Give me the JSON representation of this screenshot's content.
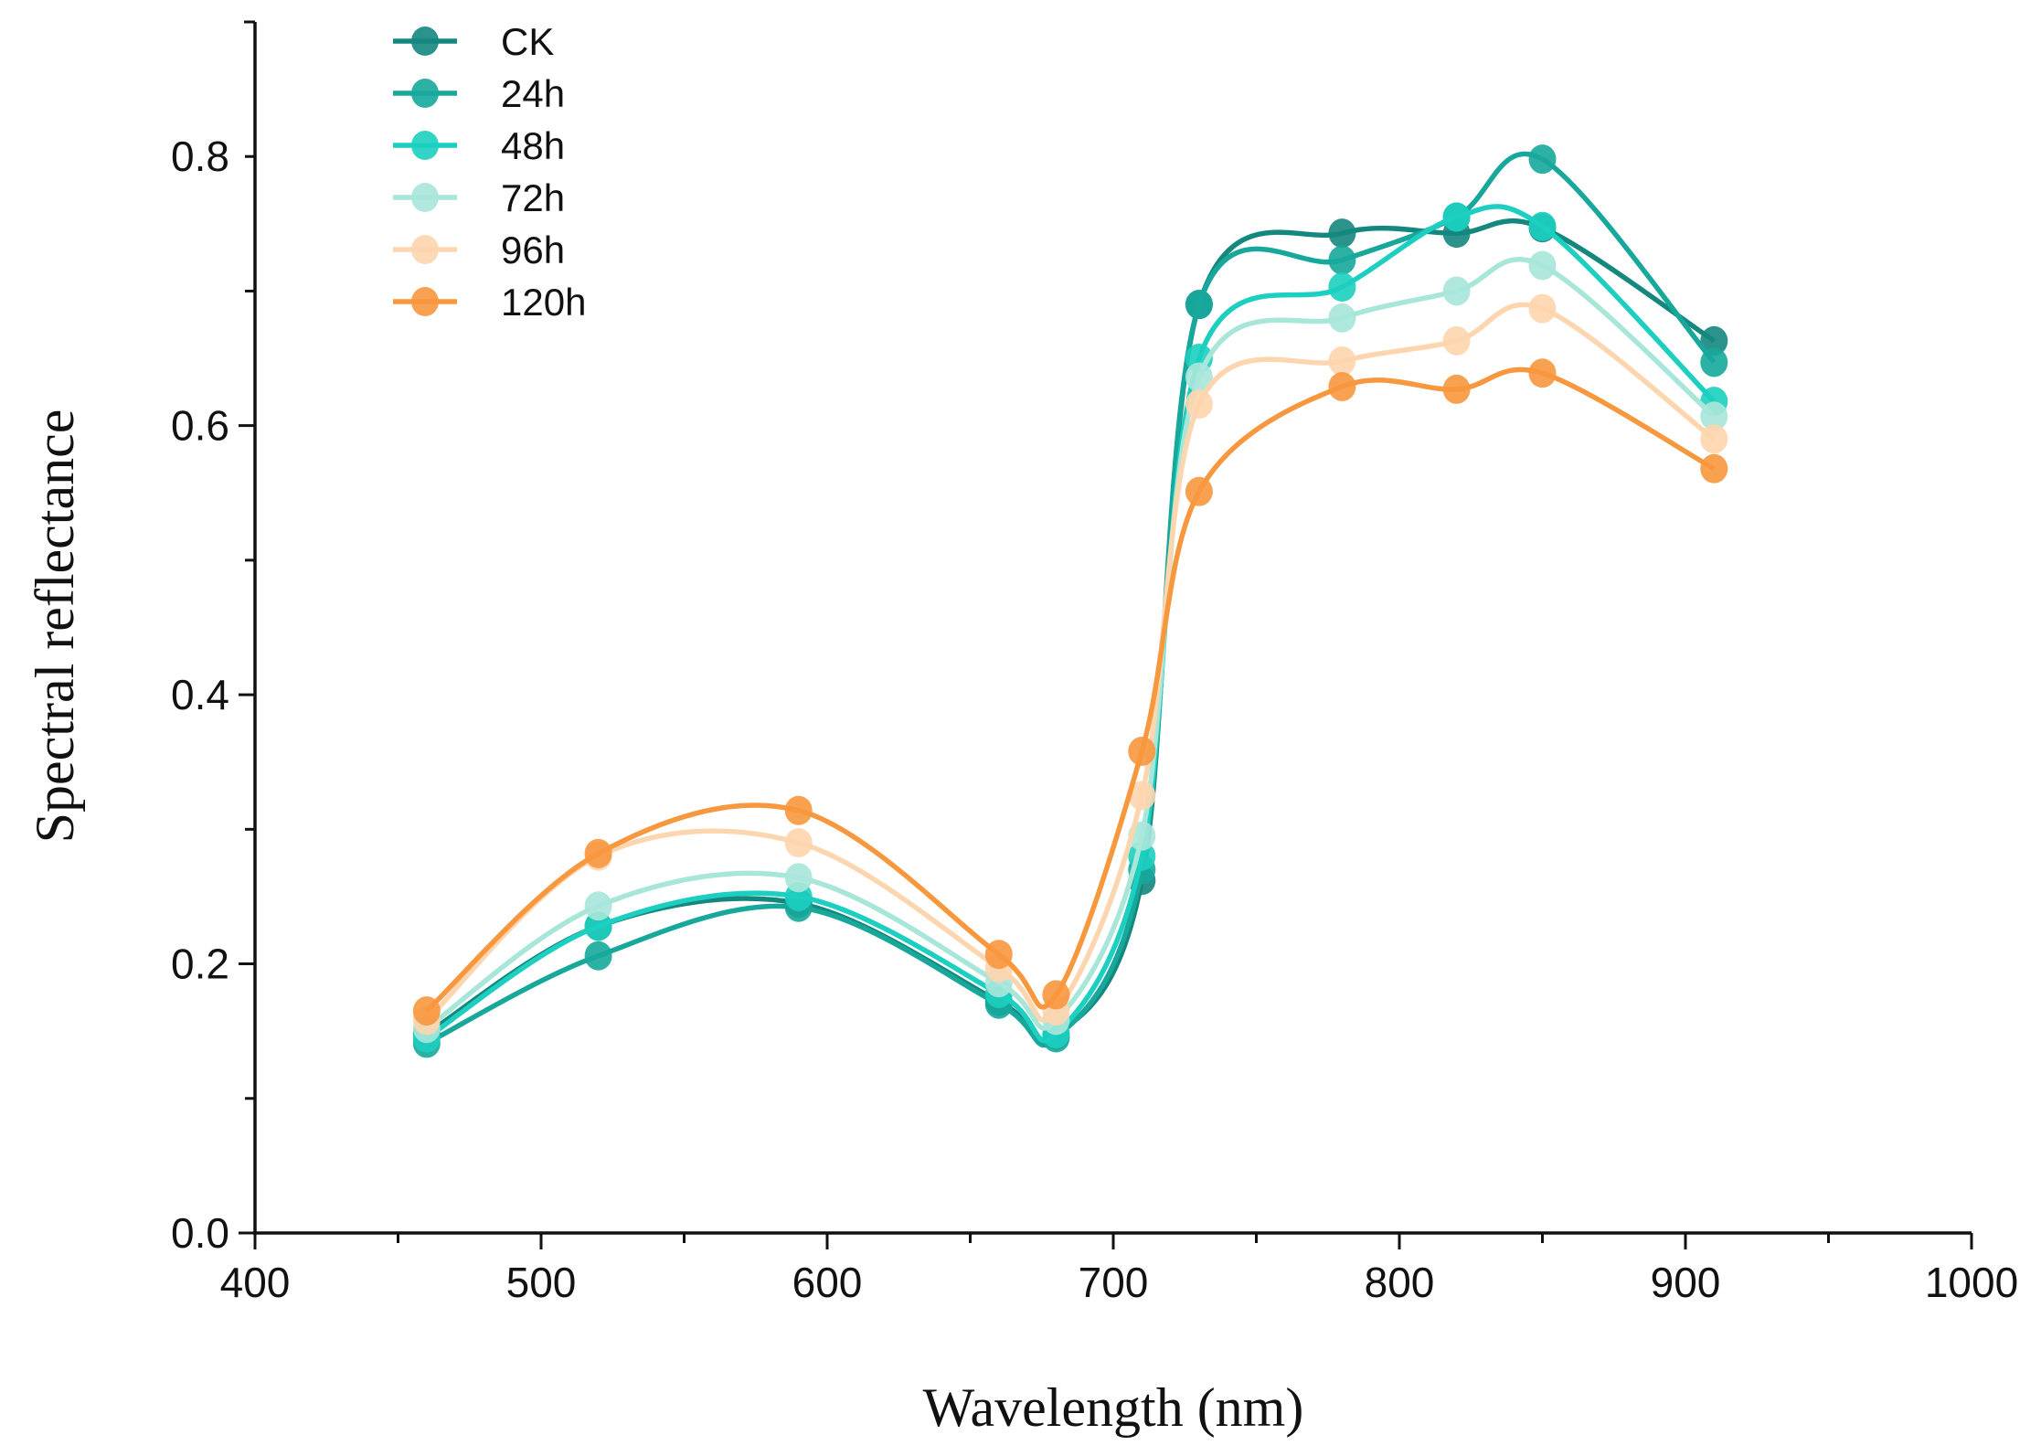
{
  "chart_data": {
    "type": "line",
    "title": "",
    "xlabel": "Wavelength (nm)",
    "ylabel": "Spectral reflectance",
    "xlim": [
      400,
      1000
    ],
    "ylim": [
      0,
      0.9
    ],
    "xticks": [
      400,
      500,
      600,
      700,
      800,
      900,
      1000
    ],
    "xtick_labels": [
      "400",
      "500",
      "600",
      "700",
      "800",
      "900",
      "1000"
    ],
    "yticks": [
      0,
      0.2,
      0.4,
      0.6,
      0.8
    ],
    "ytick_labels": [
      "0.0",
      "0.2",
      "0.4",
      "0.6",
      "0.8"
    ],
    "grid": false,
    "legend_position": "top-left",
    "x": [
      460,
      520,
      590,
      660,
      680,
      710,
      730,
      780,
      820,
      850,
      910
    ],
    "series": [
      {
        "name": "CK",
        "color": "#14877e",
        "values": [
          0.148,
          0.228,
          0.245,
          0.172,
          0.147,
          0.262,
          0.69,
          0.743,
          0.743,
          0.747,
          0.663
        ]
      },
      {
        "name": "24h",
        "color": "#17a89b",
        "values": [
          0.141,
          0.206,
          0.242,
          0.17,
          0.145,
          0.27,
          0.69,
          0.723,
          0.755,
          0.798,
          0.647
        ]
      },
      {
        "name": "48h",
        "color": "#1ccfc0",
        "values": [
          0.145,
          0.228,
          0.25,
          0.178,
          0.148,
          0.28,
          0.65,
          0.703,
          0.755,
          0.748,
          0.618
        ]
      },
      {
        "name": "72h",
        "color": "#a8e6da",
        "values": [
          0.152,
          0.243,
          0.264,
          0.186,
          0.158,
          0.295,
          0.636,
          0.68,
          0.7,
          0.719,
          0.607
        ]
      },
      {
        "name": "96h",
        "color": "#fdd5ae",
        "values": [
          0.158,
          0.28,
          0.29,
          0.197,
          0.165,
          0.325,
          0.616,
          0.648,
          0.663,
          0.687,
          0.59
        ]
      },
      {
        "name": "120h",
        "color": "#f7973e",
        "values": [
          0.165,
          0.282,
          0.314,
          0.207,
          0.177,
          0.358,
          0.551,
          0.629,
          0.627,
          0.639,
          0.568
        ]
      }
    ]
  }
}
